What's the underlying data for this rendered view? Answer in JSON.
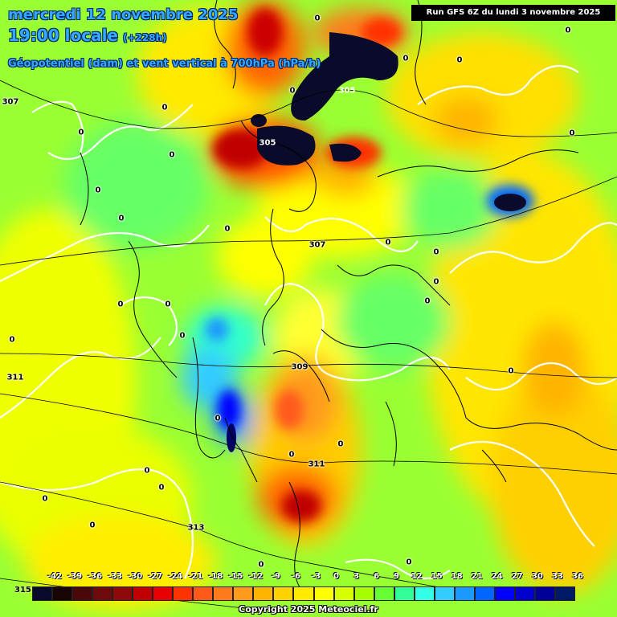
{
  "header": {
    "title_date": "mercredi 12 novembre 2025",
    "title_time": "19:00 locale",
    "lead_time": "(+228h)",
    "subtitle": "Géopotentiel (dam) et vent vertical à 700hPa (hPa/h)",
    "run": "Run GFS 6Z du lundi 3 novembre 2025"
  },
  "geopotential_labels": [
    "307",
    "305",
    "305",
    "307",
    "309",
    "311",
    "311",
    "313",
    "315"
  ],
  "zero_labels": [
    "0",
    "0",
    "0",
    "0",
    "0",
    "0",
    "0",
    "0",
    "0",
    "0",
    "0",
    "0",
    "0",
    "0",
    "0",
    "0",
    "0",
    "0",
    "0",
    "0",
    "0",
    "0",
    "0",
    "0",
    "0",
    "0",
    "0",
    "0",
    "0",
    "0"
  ],
  "legend": {
    "ticks": [
      "-42",
      "-39",
      "-36",
      "-33",
      "-30",
      "-27",
      "-24",
      "-21",
      "-18",
      "-15",
      "-12",
      "-9",
      "-6",
      "-3",
      "0",
      "3",
      "6",
      "9",
      "12",
      "15",
      "18",
      "21",
      "24",
      "27",
      "30",
      "33",
      "36"
    ],
    "colors": [
      "#0a0a2a",
      "#1a0505",
      "#4a0808",
      "#6e0a0a",
      "#8e0a0a",
      "#c00000",
      "#e60000",
      "#ff3300",
      "#ff5a1a",
      "#ff7a1a",
      "#ff9a1a",
      "#ffb400",
      "#ffd200",
      "#ffea00",
      "#ffff00",
      "#d8ff00",
      "#a6ff00",
      "#66ff33",
      "#33ff99",
      "#33ffe6",
      "#33ccff",
      "#1a99ff",
      "#0066ff",
      "#0000ff",
      "#0000cc",
      "#000099",
      "#001a66"
    ]
  },
  "copyright": "Copyright 2025 Meteociel.fr"
}
